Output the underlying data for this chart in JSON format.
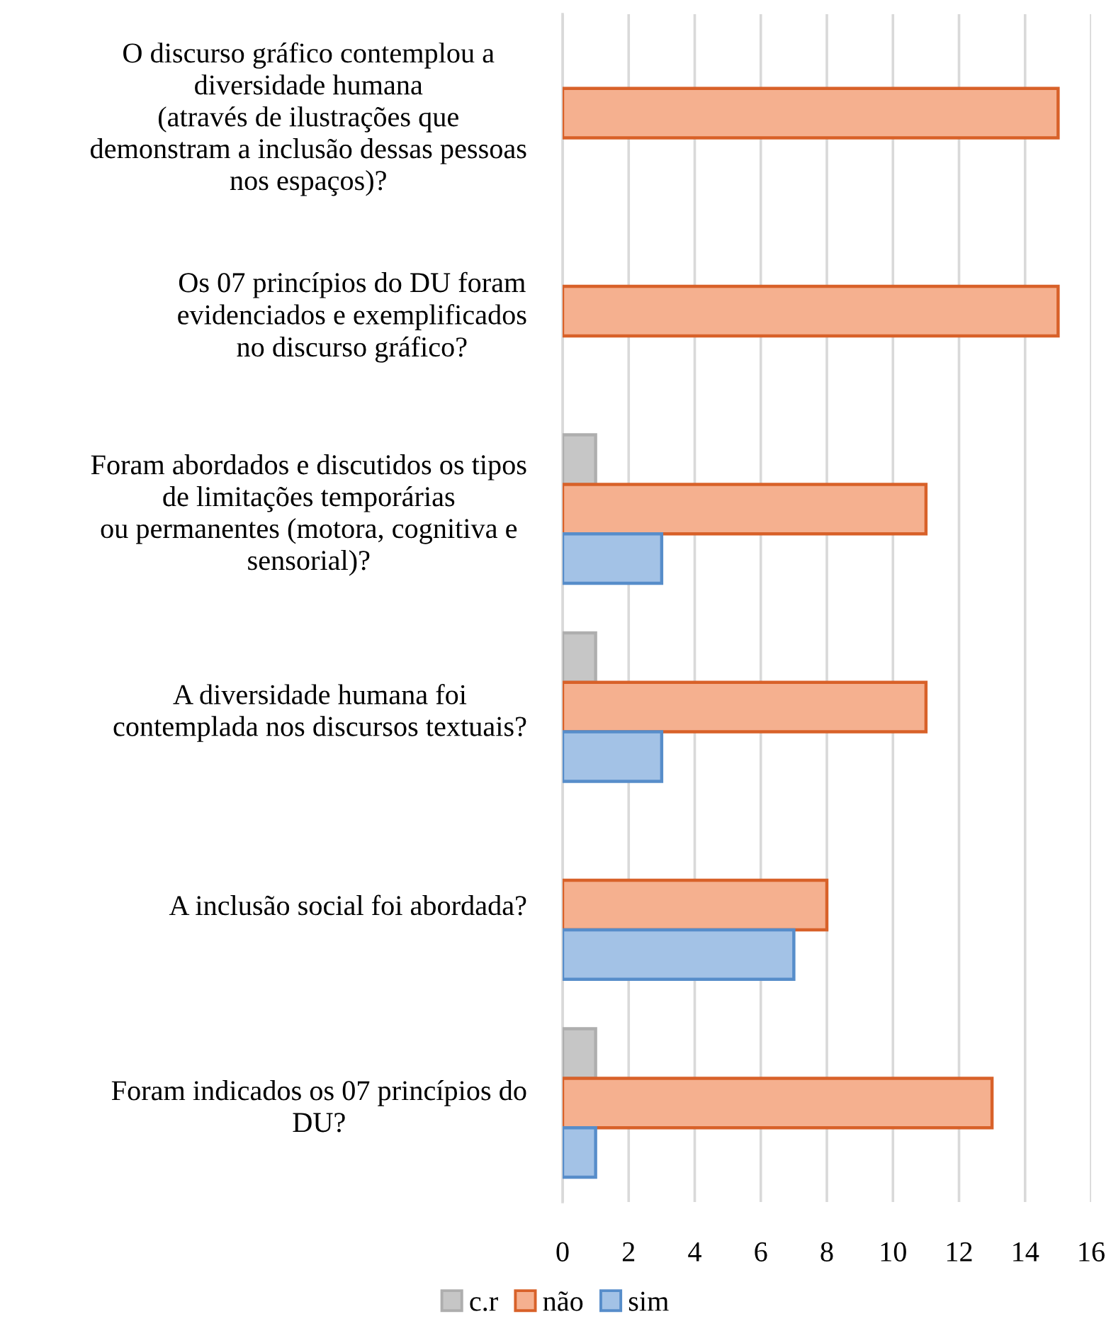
{
  "chart_data": {
    "type": "bar",
    "orientation": "horizontal",
    "categories": [
      "O discurso gráfico contemplou a\ndiversidade humana\n(através de ilustrações que\ndemonstram a inclusão dessas pessoas\nnos espaços)?",
      "Os 07 princípios do DU foram\nevidenciados e exemplificados\nno discurso gráfico?",
      "Foram abordados e discutidos os tipos\nde limitações temporárias\nou permanentes (motora, cognitiva e\nsensorial)?",
      "A diversidade humana foi\ncontemplada nos discursos textuais?",
      "A inclusão social foi abordada?",
      "Foram indicados os 07 princípios do\nDU?"
    ],
    "series": [
      {
        "name": "c.r",
        "color": "#c6c6c6",
        "values": [
          null,
          null,
          1,
          1,
          null,
          1
        ]
      },
      {
        "name": "não",
        "color": "#f5b08f",
        "values": [
          15,
          15,
          11,
          11,
          8,
          13
        ]
      },
      {
        "name": "sim",
        "color": "#a3c2e6",
        "values": [
          null,
          null,
          3,
          3,
          7,
          1
        ]
      }
    ],
    "xlim": [
      0,
      16
    ],
    "xticks": [
      0,
      2,
      4,
      6,
      8,
      10,
      12,
      14,
      16
    ],
    "grid": "x",
    "legend": "bottom"
  }
}
